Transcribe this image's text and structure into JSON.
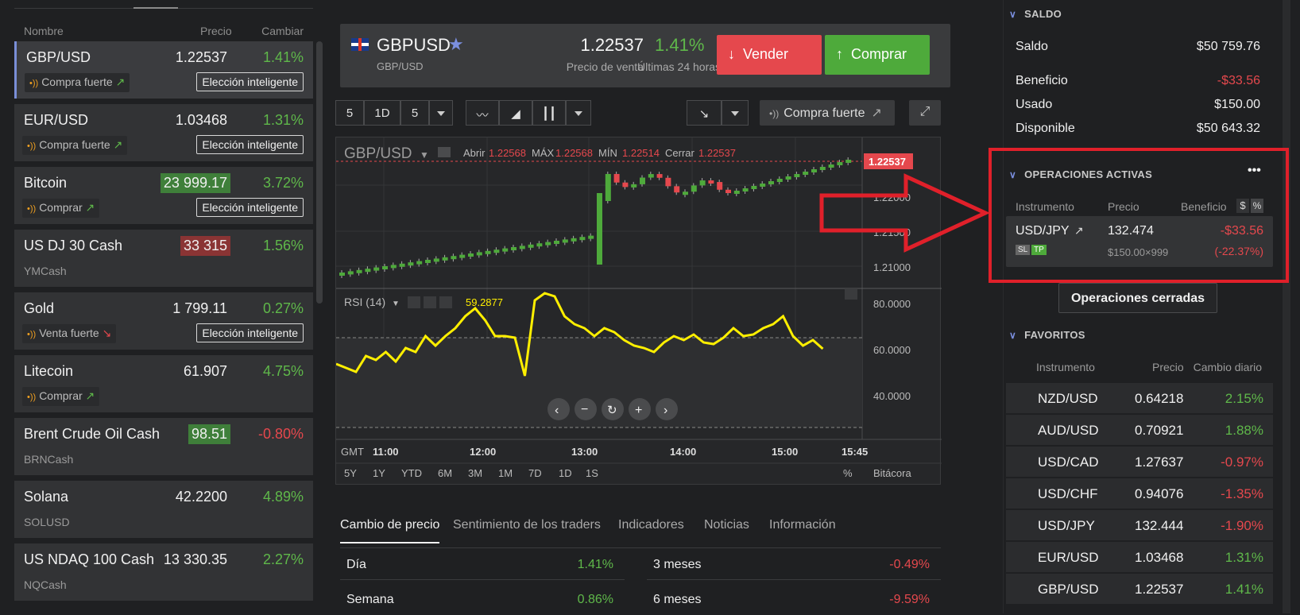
{
  "list": {
    "headers": {
      "name": "Nombre",
      "price": "Precio",
      "change": "Cambiar"
    },
    "rows": [
      {
        "name": "GBP/USD",
        "price": "1.22537",
        "change": "1.41%",
        "dir": "up",
        "tag": "Compra fuerte",
        "tag_arrow": "↗",
        "smart": "Elección inteligente",
        "sub": ""
      },
      {
        "name": "EUR/USD",
        "price": "1.03468",
        "change": "1.31%",
        "dir": "up",
        "tag": "Compra fuerte",
        "tag_arrow": "↗",
        "smart": "Elección inteligente",
        "sub": ""
      },
      {
        "name": "Bitcoin",
        "price": "23 999.17",
        "change": "3.72%",
        "dir": "up",
        "tag": "Comprar",
        "tag_arrow": "↗",
        "smart": "Elección inteligente",
        "sub": "",
        "hl": "green"
      },
      {
        "name": "US DJ 30 Cash",
        "price": "33 315",
        "change": "1.56%",
        "dir": "up",
        "tag": "",
        "tag_arrow": "",
        "smart": "",
        "sub": "YMCash",
        "hl": "red"
      },
      {
        "name": "Gold",
        "price": "1 799.11",
        "change": "0.27%",
        "dir": "up",
        "tag": "Venta fuerte",
        "tag_arrow": "↘",
        "smart": "Elección inteligente",
        "sub": ""
      },
      {
        "name": "Litecoin",
        "price": "61.907",
        "change": "4.75%",
        "dir": "up",
        "tag": "Comprar",
        "tag_arrow": "↗",
        "smart": "",
        "sub": ""
      },
      {
        "name": "Brent Crude Oil Cash",
        "price": "98.51",
        "change": "-0.80%",
        "dir": "down",
        "tag": "",
        "tag_arrow": "",
        "smart": "",
        "sub": "BRNCash",
        "hl": "green"
      },
      {
        "name": "Solana",
        "price": "42.2200",
        "change": "4.89%",
        "dir": "up",
        "tag": "",
        "tag_arrow": "",
        "smart": "",
        "sub": "SOLUSD"
      },
      {
        "name": "US NDAQ 100 Cash",
        "price": "13 330.35",
        "change": "2.27%",
        "dir": "up",
        "tag": "",
        "tag_arrow": "",
        "smart": "",
        "sub": "NQCash"
      }
    ]
  },
  "header": {
    "symbol": "GBPUSD",
    "symbol_sub": "GBP/USD",
    "price": "1.22537",
    "price_label": "Precio de venta",
    "change": "1.41%",
    "change_label": "Últimas 24 horas",
    "sell": "Vender",
    "buy": "Comprar"
  },
  "toolbar": {
    "interval_a": "5",
    "interval_b": "1D",
    "interval_c": "5",
    "signal": "Compra fuerte"
  },
  "chart": {
    "instrument": "GBP/USD",
    "ohlc": {
      "open_label": "Abrir",
      "open": "1.22568",
      "high_label": "MÁX",
      "high": "1.22568",
      "low_label": "MÍN",
      "low": "1.22514",
      "close_label": "Cerrar",
      "close": "1.22537"
    },
    "price_tag": "1.22537",
    "price_ticks": [
      "1.22000",
      "1.21500",
      "1.21000"
    ],
    "rsi_label": "RSI (14)",
    "rsi_value": "59.2877",
    "rsi_ticks": [
      "80.0000",
      "60.0000",
      "40.0000"
    ],
    "tz": "GMT",
    "time_ticks": [
      "11:00",
      "12:00",
      "13:00",
      "14:00",
      "15:00",
      "15:45"
    ],
    "ranges": [
      "5Y",
      "1Y",
      "YTD",
      "6M",
      "3M",
      "1M",
      "7D",
      "1D",
      "1S"
    ],
    "pct": "%",
    "log": "Bitácora"
  },
  "chart_data": {
    "type": "line",
    "title": "GBP/USD",
    "x": [
      "11:00",
      "12:00",
      "13:00",
      "14:00",
      "15:00",
      "15:45"
    ],
    "series": [
      {
        "name": "GBP/USD",
        "values": [
          1.2085,
          1.211,
          1.225,
          1.222,
          1.225,
          1.22537
        ]
      },
      {
        "name": "RSI (14)",
        "values": [
          50,
          65,
          80,
          58,
          72,
          59.2877
        ]
      }
    ],
    "ylim": [
      1.205,
      1.228
    ]
  },
  "tabs": [
    "Cambio de precio",
    "Sentimiento de los traders",
    "Indicadores",
    "Noticias",
    "Información"
  ],
  "price_change": [
    {
      "label": "Día",
      "value": "1.41%",
      "dir": "up"
    },
    {
      "label": "3 meses",
      "value": "-0.49%",
      "dir": "down"
    },
    {
      "label": "Semana",
      "value": "0.86%",
      "dir": "up"
    },
    {
      "label": "6 meses",
      "value": "-9.59%",
      "dir": "down"
    }
  ],
  "balance": {
    "title": "SALDO",
    "rows": [
      {
        "k": "Saldo",
        "v": "$50 759.76"
      },
      {
        "k": "Beneficio",
        "v": "-$33.56",
        "dir": "down"
      },
      {
        "k": "Usado",
        "v": "$150.00"
      },
      {
        "k": "Disponible",
        "v": "$50 643.32"
      }
    ]
  },
  "active": {
    "title": "OPERACIONES ACTIVAS",
    "more": "•••",
    "h_instr": "Instrumento",
    "h_price": "Precio",
    "h_profit": "Beneficio",
    "h_dollar": "$",
    "h_pct": "%",
    "trade": {
      "name": "USD/JPY",
      "arrow": "↗",
      "price": "132.474",
      "sub": "$150.00×999",
      "profit": "-$33.56",
      "profit_pct": "(-22.37%)",
      "sl": "SL",
      "tp": "TP"
    },
    "closed": "Operaciones cerradas"
  },
  "favorites": {
    "title": "FAVORITOS",
    "h_instr": "Instrumento",
    "h_price": "Precio",
    "h_change": "Cambio diario",
    "rows": [
      {
        "name": "NZD/USD",
        "price": "0.64218",
        "change": "2.15%",
        "dir": "up"
      },
      {
        "name": "AUD/USD",
        "price": "0.70921",
        "change": "1.88%",
        "dir": "up"
      },
      {
        "name": "USD/CAD",
        "price": "1.27637",
        "change": "-0.97%",
        "dir": "down"
      },
      {
        "name": "USD/CHF",
        "price": "0.94076",
        "change": "-1.35%",
        "dir": "down"
      },
      {
        "name": "USD/JPY",
        "price": "132.444",
        "change": "-1.90%",
        "dir": "down"
      },
      {
        "name": "EUR/USD",
        "price": "1.03468",
        "change": "1.31%",
        "dir": "up"
      },
      {
        "name": "GBP/USD",
        "price": "1.22537",
        "change": "1.41%",
        "dir": "up"
      }
    ]
  }
}
